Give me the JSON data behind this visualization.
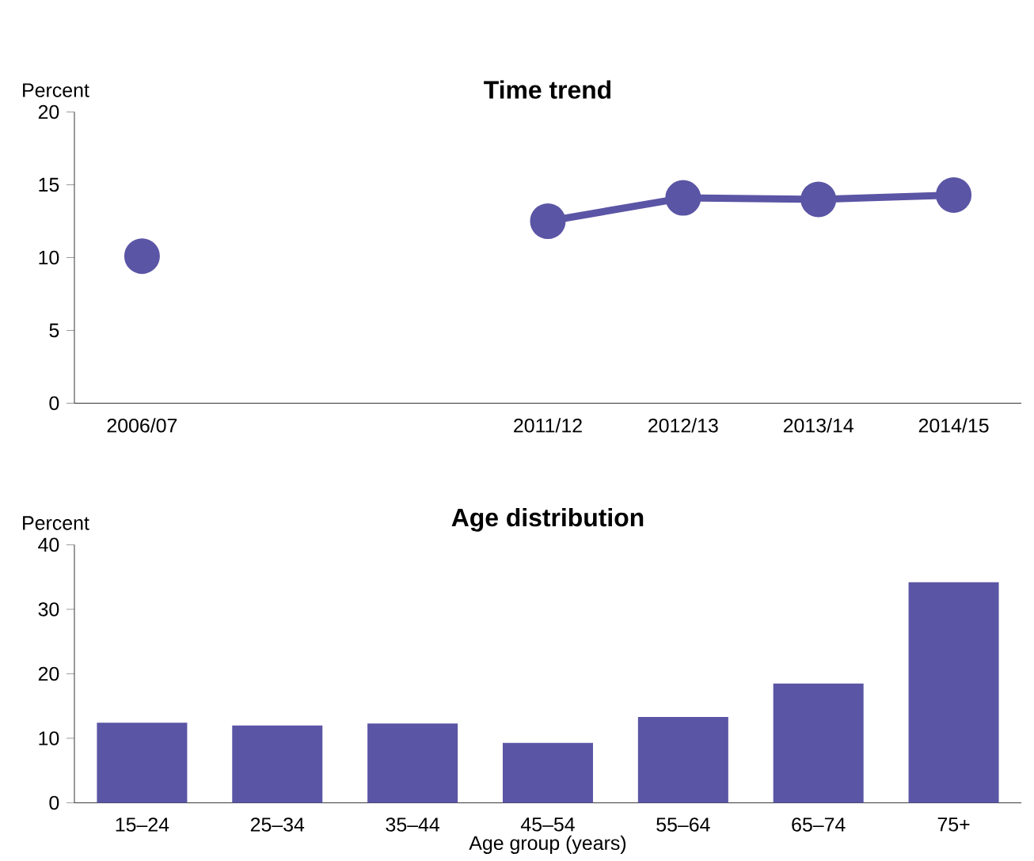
{
  "chart_data": [
    {
      "type": "line",
      "title": "Time trend",
      "ylabel": "Percent",
      "categories": [
        "2006/07",
        null,
        null,
        "2011/12",
        "2012/13",
        "2013/14",
        "2014/15"
      ],
      "values": [
        10.1,
        null,
        null,
        12.5,
        14.1,
        14.0,
        14.3
      ],
      "color": "#5b55a5",
      "marker": "circle",
      "ylim": [
        0,
        20
      ],
      "yticks": [
        0,
        5,
        10,
        15,
        20
      ]
    },
    {
      "type": "bar",
      "title": "Age distribution",
      "ylabel": "Percent",
      "xlabel": "Age group (years)",
      "categories": [
        "15–24",
        "25–34",
        "35–44",
        "45–54",
        "55–64",
        "65–74",
        "75+"
      ],
      "values": [
        12.4,
        12.0,
        12.3,
        9.3,
        13.3,
        18.5,
        34.2
      ],
      "color": "#5b55a5",
      "ylim": [
        0,
        40
      ],
      "yticks": [
        0,
        10,
        20,
        30,
        40
      ]
    }
  ]
}
